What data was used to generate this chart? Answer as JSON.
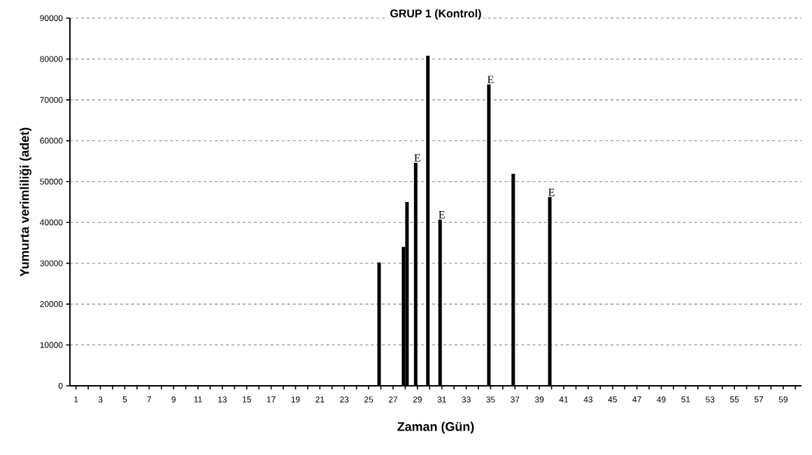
{
  "chart_data": {
    "type": "bar",
    "title": "GRUP 1 (Kontrol)",
    "xlabel": "Zaman (Gün)",
    "ylabel": "Yumurta verimliliği (adet)",
    "series": [
      {
        "color": "#000000",
        "x": [
          26,
          28,
          29,
          30,
          31,
          35,
          37,
          40
        ],
        "values": [
          30200,
          34000,
          54600,
          80800,
          40700,
          73800,
          51900,
          46200
        ]
      },
      {
        "color": "#000000",
        "x": [
          28
        ],
        "values": [
          45000
        ]
      }
    ],
    "xlim": [
      0.5,
      60.5
    ],
    "ylim": [
      0,
      90000
    ],
    "xticks": [
      1,
      {
        "value": 2,
        "label": null
      },
      3,
      {
        "value": 4,
        "label": null
      },
      5,
      {
        "value": 6,
        "label": null
      },
      7,
      {
        "value": 8,
        "label": null
      },
      9,
      {
        "value": 10,
        "label": null
      },
      11,
      {
        "value": 12,
        "label": null
      },
      13,
      {
        "value": 14,
        "label": null
      },
      15,
      {
        "value": 16,
        "label": null
      },
      17,
      {
        "value": 18,
        "label": null
      },
      19,
      {
        "value": 20,
        "label": null
      },
      21,
      {
        "value": 22,
        "label": null
      },
      23,
      {
        "value": 24,
        "label": null
      },
      25,
      {
        "value": 26,
        "label": null
      },
      27,
      {
        "value": 28,
        "label": null
      },
      29,
      {
        "value": 30,
        "label": null
      },
      31,
      {
        "value": 32,
        "label": null
      },
      33,
      {
        "value": 34,
        "label": null
      },
      35,
      {
        "value": 36,
        "label": null
      },
      37,
      {
        "value": 38,
        "label": null
      },
      39,
      {
        "value": 40,
        "label": null
      },
      41,
      {
        "value": 42,
        "label": null
      },
      43,
      {
        "value": 44,
        "label": null
      },
      45,
      {
        "value": 46,
        "label": null
      },
      47,
      {
        "value": 48,
        "label": null
      },
      49,
      {
        "value": 50,
        "label": null
      },
      51,
      {
        "value": 52,
        "label": null
      },
      53,
      {
        "value": 54,
        "label": null
      },
      55,
      {
        "value": 56,
        "label": null
      },
      57,
      {
        "value": 58,
        "label": null
      },
      59,
      {
        "value": 60,
        "label": null
      }
    ],
    "yticks": [
      0,
      10000,
      20000,
      30000,
      40000,
      50000,
      60000,
      70000,
      80000,
      90000
    ],
    "grid": "y",
    "annotations": [
      {
        "text": "E",
        "x": 29,
        "y": 54600
      },
      {
        "text": "E",
        "x": 31,
        "y": 40700
      },
      {
        "text": "E",
        "x": 35,
        "y": 73800
      },
      {
        "text": "E",
        "x": 40,
        "y": 46200
      }
    ]
  }
}
